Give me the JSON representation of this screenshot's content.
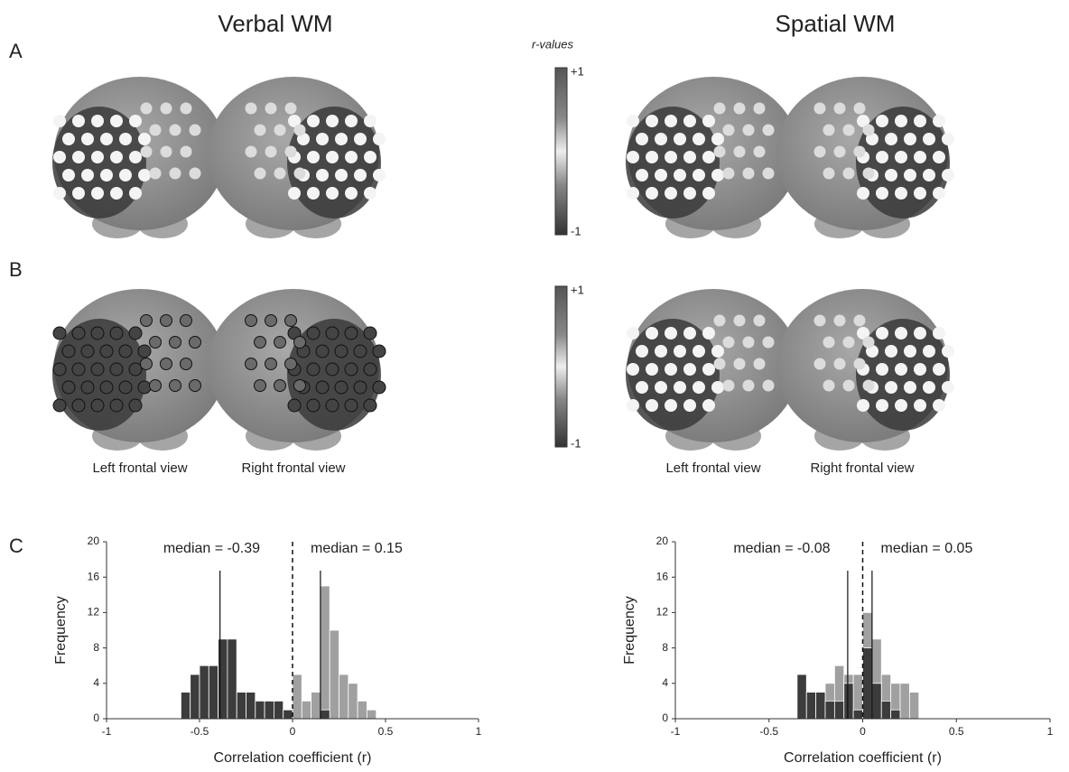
{
  "figure": {
    "headings": [
      "Verbal WM",
      "Spatial WM"
    ],
    "panels": [
      "A",
      "B",
      "C"
    ],
    "colorbar": {
      "title": "r-values",
      "max": "+1",
      "min": "-1"
    },
    "views": [
      "Left frontal view",
      "Right frontal view"
    ]
  },
  "chart_data": [
    {
      "type": "histogram",
      "x_label": "Correlation coefficient (r)",
      "y_label": "Frequency",
      "bins": [
        -0.6,
        -0.55,
        -0.5,
        -0.45,
        -0.4,
        -0.35,
        -0.3,
        -0.25,
        -0.2,
        -0.15,
        -0.1,
        -0.05,
        0,
        0.05,
        0.1,
        0.15,
        0.2,
        0.25,
        0.3,
        0.35,
        0.4,
        0.45
      ],
      "series": [
        {
          "color": "#a0a0a0",
          "values": [
            0,
            0,
            0,
            0,
            0,
            0,
            0,
            0,
            0,
            0,
            0,
            0,
            5,
            2,
            3,
            15,
            10,
            5,
            4,
            2,
            1
          ]
        },
        {
          "color": "#3c3c3c",
          "values": [
            3,
            5,
            6,
            6,
            9,
            9,
            3,
            3,
            2,
            2,
            2,
            1,
            0,
            0,
            0,
            1,
            0,
            0,
            0,
            0,
            0
          ]
        }
      ],
      "xlim": [
        -1,
        1
      ],
      "xticks": [
        -1,
        -0.5,
        0,
        0.5,
        1
      ],
      "ylim": [
        0,
        20
      ],
      "yticks": [
        0,
        4,
        8,
        12,
        16,
        20
      ],
      "reference_line": 0,
      "annotations": [
        {
          "label": "median = -0.39",
          "value": -0.39
        },
        {
          "label": "median = 0.15",
          "value": 0.15
        }
      ]
    },
    {
      "type": "histogram",
      "x_label": "Correlation coefficient (r)",
      "y_label": "Frequency",
      "bins": [
        -0.35,
        -0.3,
        -0.25,
        -0.2,
        -0.15,
        -0.1,
        -0.05,
        0,
        0.05,
        0.1,
        0.15,
        0.2,
        0.25,
        0.3
      ],
      "series": [
        {
          "color": "#a0a0a0",
          "values": [
            0,
            0,
            3,
            4,
            6,
            5,
            5,
            12,
            9,
            5,
            4,
            4,
            3
          ]
        },
        {
          "color": "#3c3c3c",
          "values": [
            5,
            3,
            3,
            2,
            2,
            4,
            1,
            8,
            4,
            2,
            1,
            0,
            0
          ]
        }
      ],
      "xlim": [
        -1,
        1
      ],
      "xticks": [
        -1,
        -0.5,
        0,
        0.5,
        1
      ],
      "ylim": [
        0,
        20
      ],
      "yticks": [
        0,
        4,
        8,
        12,
        16,
        20
      ],
      "reference_line": 0,
      "annotations": [
        {
          "label": "median = -0.08",
          "value": -0.08
        },
        {
          "label": "median = 0.05",
          "value": 0.05
        }
      ]
    }
  ]
}
